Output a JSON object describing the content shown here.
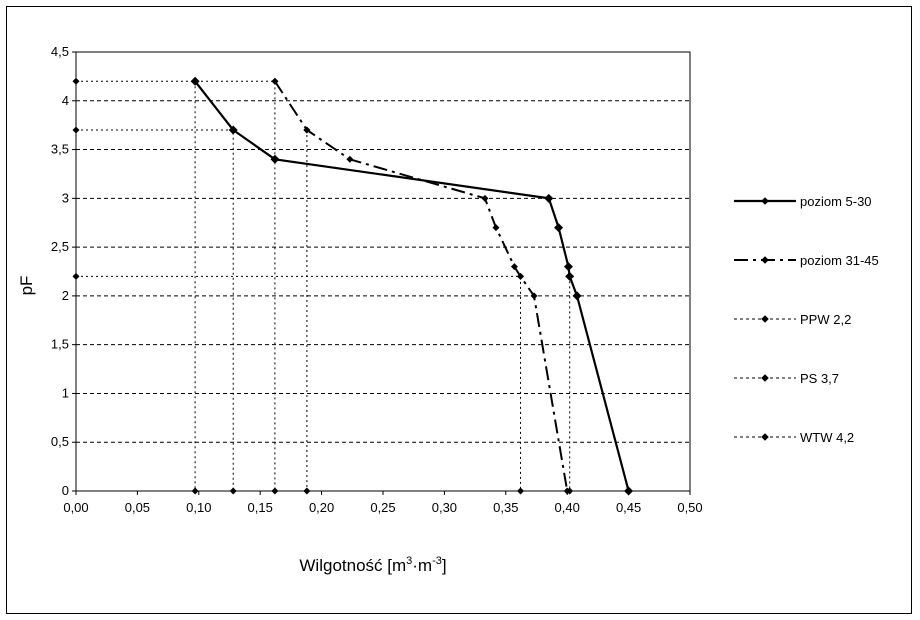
{
  "chart_data": {
    "type": "line",
    "xlabel": {
      "main": "Wilgotność [m",
      "sup1": "3",
      "mid": "·m",
      "sup2": "-3",
      "end": "]"
    },
    "ylabel": "pF",
    "xlim": [
      0,
      0.5
    ],
    "ylim": [
      0,
      4.5
    ],
    "x_ticks": [
      "0,00",
      "0,05",
      "0,10",
      "0,15",
      "0,20",
      "0,25",
      "0,30",
      "0,35",
      "0,40",
      "0,45",
      "0,50"
    ],
    "y_ticks": [
      "0",
      "0,5",
      "1",
      "1,5",
      "2",
      "2,5",
      "3",
      "3,5",
      "4",
      "4,5"
    ],
    "grid": "horizontal dashed",
    "legend_position": "right",
    "series": [
      {
        "name": "poziom 5-30",
        "style": "solid",
        "points": [
          [
            0.097,
            4.2
          ],
          [
            0.128,
            3.7
          ],
          [
            0.162,
            3.4
          ],
          [
            0.385,
            3.0
          ],
          [
            0.393,
            2.7
          ],
          [
            0.401,
            2.3
          ],
          [
            0.402,
            2.2
          ],
          [
            0.408,
            2.0
          ],
          [
            0.45,
            0.0
          ]
        ]
      },
      {
        "name": "poziom 31-45",
        "style": "dashdot",
        "points": [
          [
            0.162,
            4.2
          ],
          [
            0.188,
            3.7
          ],
          [
            0.223,
            3.4
          ],
          [
            0.333,
            3.0
          ],
          [
            0.342,
            2.7
          ],
          [
            0.357,
            2.3
          ],
          [
            0.362,
            2.2
          ],
          [
            0.373,
            2.0
          ],
          [
            0.4,
            0.0
          ]
        ]
      },
      {
        "name": "PPW 2,2",
        "style": "dotted",
        "points": [
          [
            0.0,
            2.2
          ],
          [
            0.362,
            2.2
          ],
          [
            0.362,
            0.0
          ]
        ]
      },
      {
        "name": "PS 3,7",
        "style": "dotted",
        "points": [
          [
            0.0,
            3.7
          ],
          [
            0.128,
            3.7
          ],
          [
            0.128,
            0.0
          ]
        ]
      },
      {
        "name": "WTW 4,2",
        "style": "dotted",
        "points": [
          [
            0.0,
            4.2
          ],
          [
            0.162,
            4.2
          ],
          [
            0.162,
            0.0
          ]
        ]
      }
    ],
    "extra_marker_lines": [
      {
        "series": "PS 3,7",
        "points": [
          [
            0.188,
            3.7
          ],
          [
            0.188,
            0.0
          ]
        ]
      },
      {
        "series": "WTW 4,2",
        "points": [
          [
            0.097,
            4.2
          ],
          [
            0.097,
            0.0
          ]
        ]
      },
      {
        "series": "PPW 2,2",
        "points": [
          [
            0.402,
            2.2
          ],
          [
            0.402,
            0.0
          ]
        ]
      }
    ]
  }
}
